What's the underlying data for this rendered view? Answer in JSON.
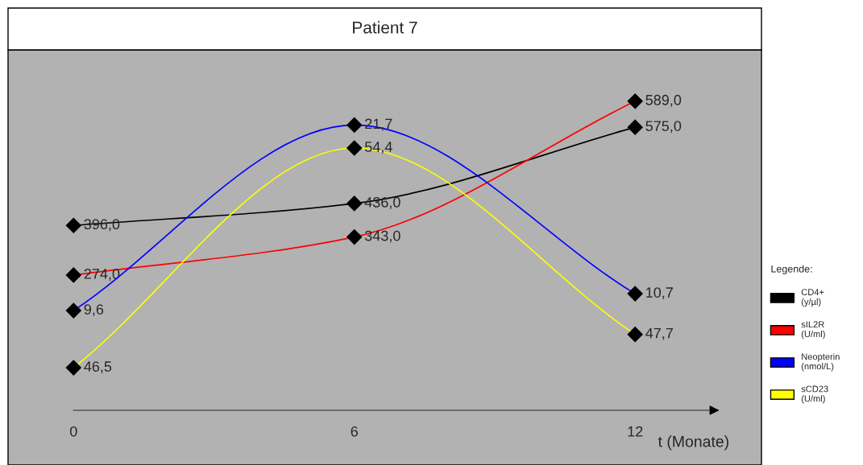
{
  "chart_data": [
    {
      "type": "line",
      "title": "Patient 7",
      "xlabel": "t (Monate)",
      "legend_title": "Legende:",
      "x": [
        0,
        6,
        12
      ],
      "xlim": [
        -1.4,
        14.7
      ],
      "xticks": [
        0,
        6,
        12
      ],
      "ylim": [
        59,
        716
      ],
      "tick_labels": "x",
      "marker": "diamond",
      "legend": "right",
      "series": [
        {
          "name": "CD4+\n(y/µl)",
          "color": "#000000",
          "values": [
            396.0,
            436.0,
            575.0
          ],
          "value_labels": [
            "396,0",
            "436,0",
            "575,0"
          ]
        }
      ]
    },
    {
      "type": "line",
      "x": [
        0,
        6,
        12
      ],
      "xlim": [
        -1.4,
        14.7
      ],
      "ylim": [
        29,
        682
      ],
      "tick_labels": false,
      "marker": "diamond",
      "legend": "right",
      "series": [
        {
          "name": "sIL2R\n(U/ml)",
          "color": "#ff0000",
          "values": [
            274.0,
            343.0,
            589.0
          ],
          "value_labels": [
            "274,0",
            "343,0",
            "589,0"
          ]
        }
      ]
    },
    {
      "type": "line",
      "x": [
        0,
        6,
        12
      ],
      "xlim": [
        -1.4,
        14.7
      ],
      "ylim": [
        3.1,
        26.6
      ],
      "tick_labels": false,
      "marker": "diamond",
      "legend": "right",
      "series": [
        {
          "name": "Neopterin\n(nmol/L)",
          "color": "#0000ff",
          "values": [
            9.6,
            21.7,
            10.7
          ],
          "value_labels": [
            "9,6",
            "21,7",
            "10,7"
          ]
        }
      ]
    },
    {
      "type": "line",
      "x": [
        0,
        6,
        12
      ],
      "xlim": [
        -1.4,
        14.7
      ],
      "ylim": [
        44.97,
        57.93
      ],
      "tick_labels": false,
      "marker": "diamond",
      "legend": "right",
      "series": [
        {
          "name": "sCD23\n(U/ml)",
          "color": "#ffff00",
          "values": [
            46.5,
            54.4,
            47.7
          ],
          "value_labels": [
            "46,5",
            "54,4",
            "47,7"
          ]
        }
      ]
    }
  ]
}
